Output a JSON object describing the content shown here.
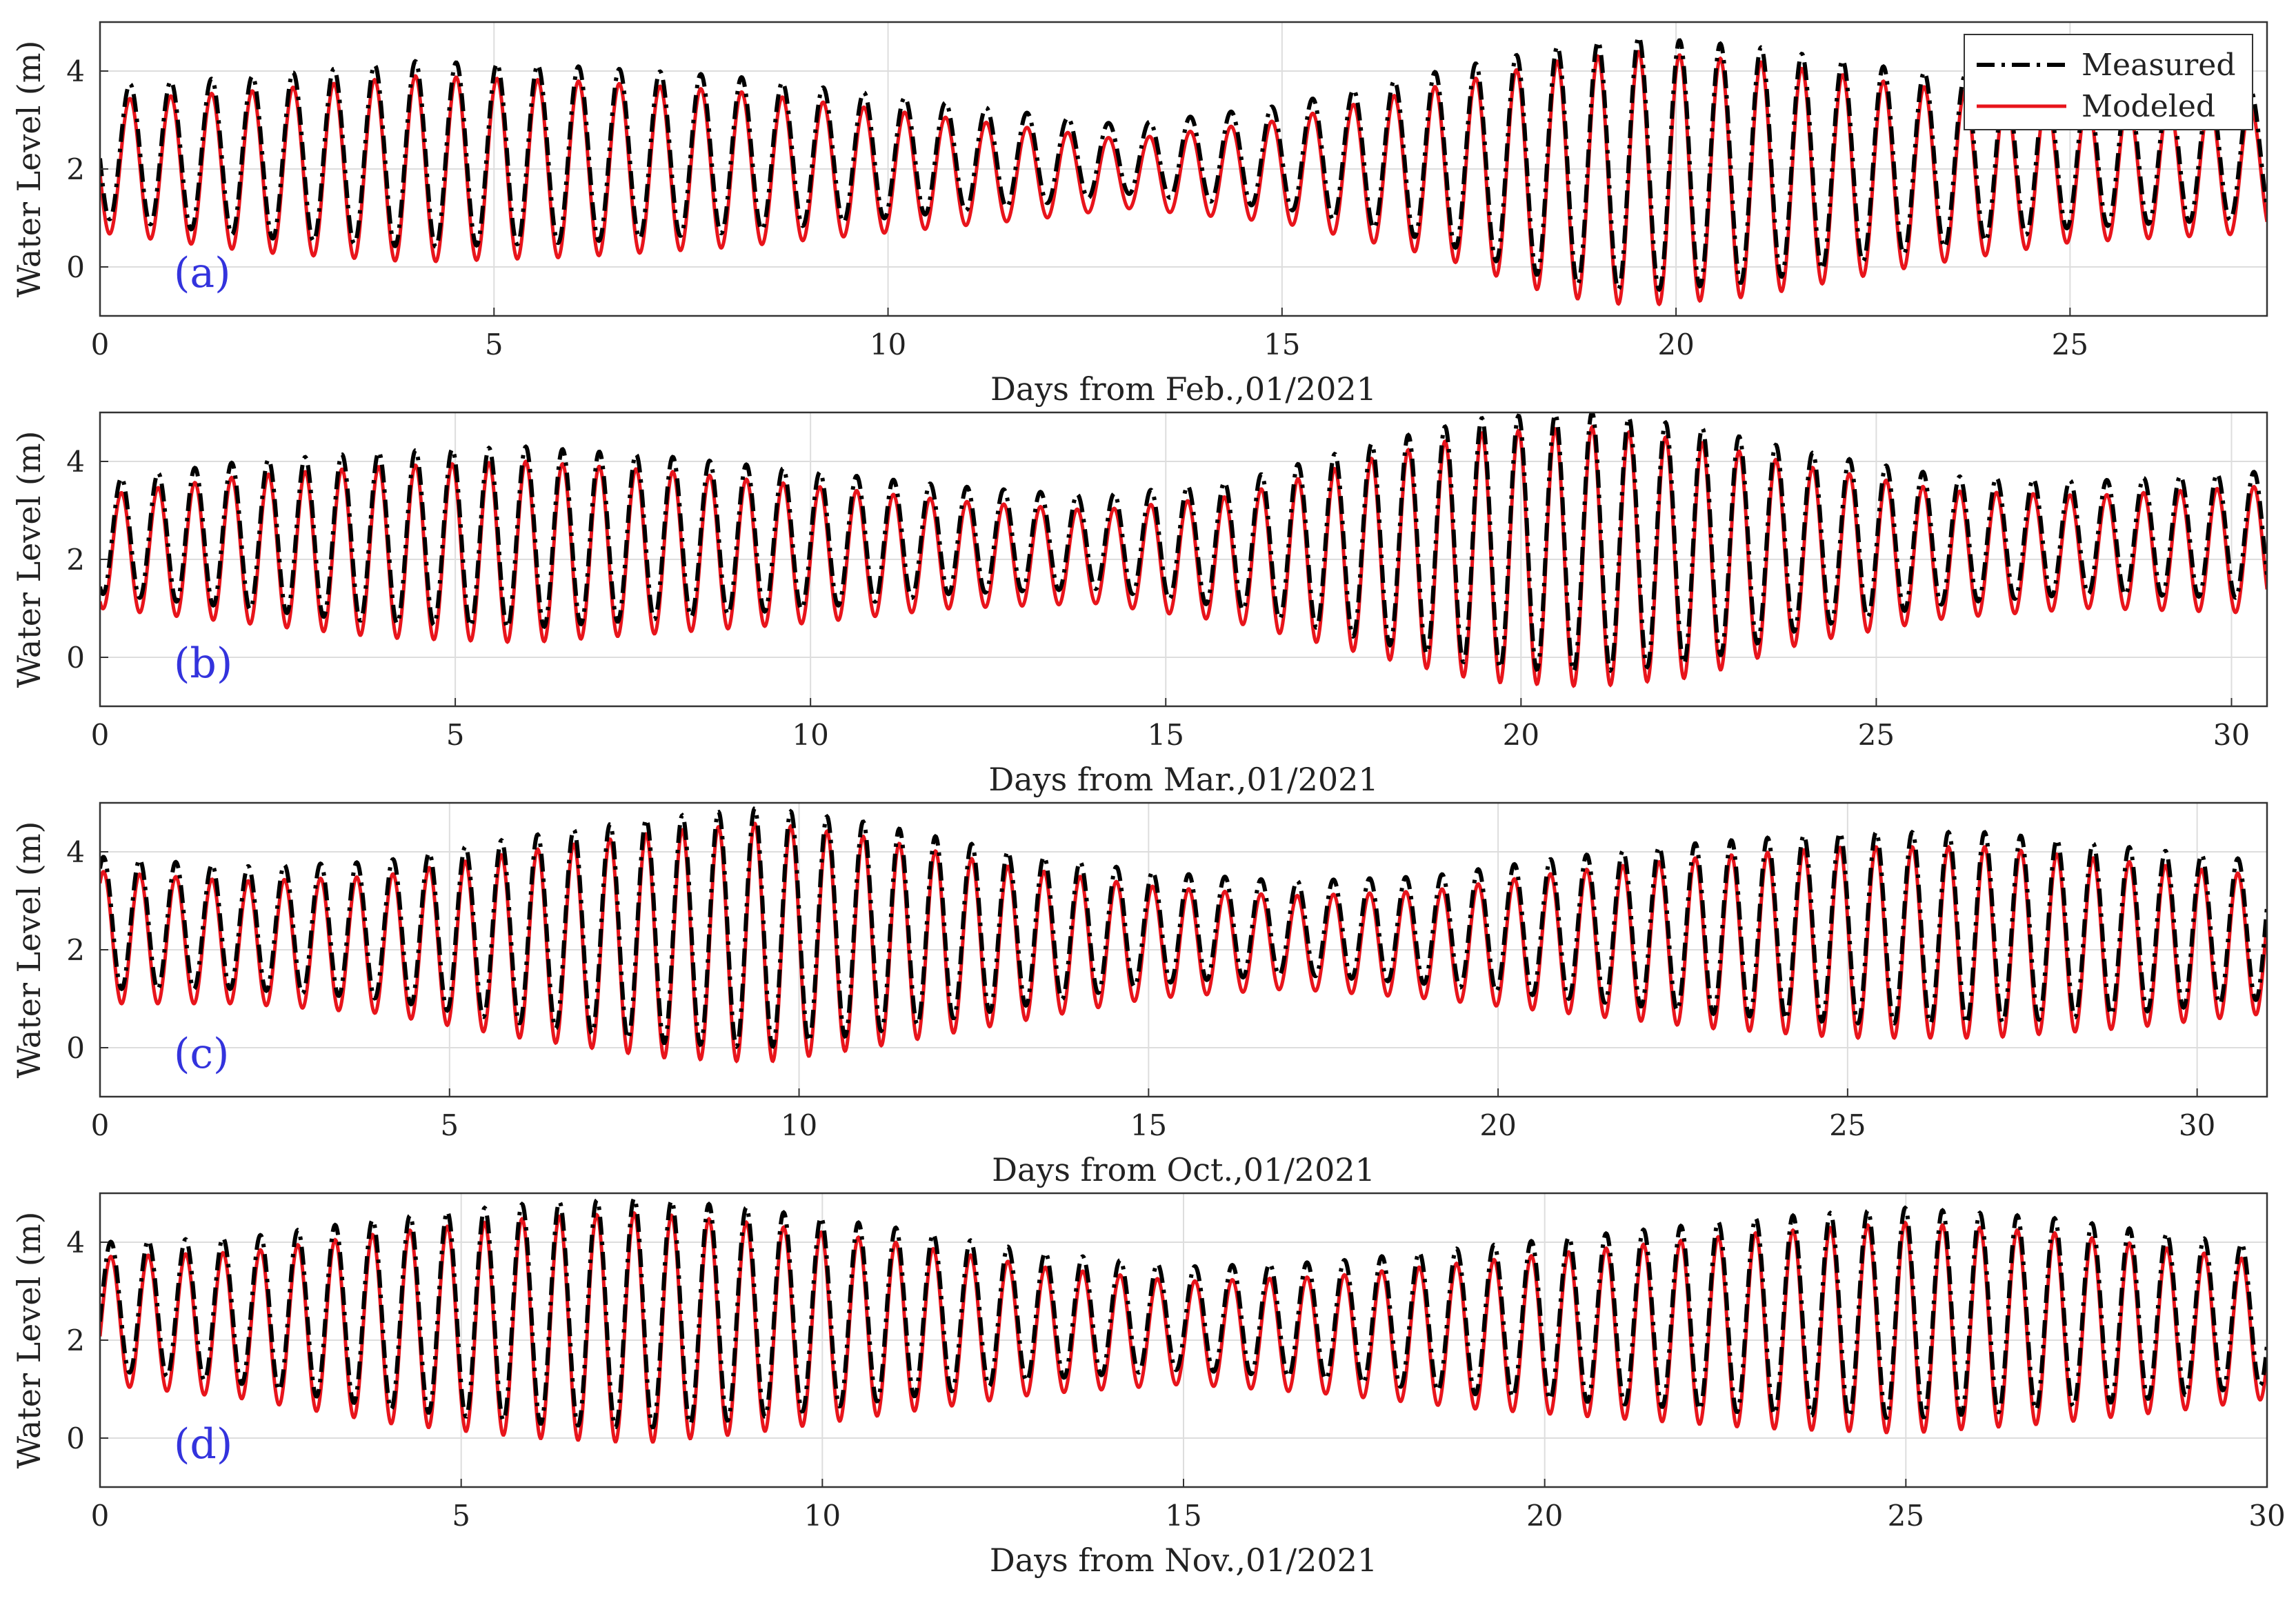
{
  "figure": {
    "background": "#ffffff"
  },
  "colors": {
    "measured": "#000000",
    "modeled": "#e8141b",
    "panel_label": "#3333dd",
    "grid": "#dddddd",
    "axes": "#333333"
  },
  "legend": {
    "position": "top-right",
    "panel": 0,
    "entries": [
      "Measured",
      "Modeled"
    ]
  },
  "chart_data": [
    {
      "type": "line",
      "panel_label": "(a)",
      "xlabel": "Days from Feb.,01/2021",
      "ylabel": "Water Level (m)",
      "xlim": [
        0,
        27.5
      ],
      "ylim": [
        -1,
        5
      ],
      "xticks": [
        0,
        5,
        10,
        15,
        20,
        25
      ],
      "yticks": [
        0,
        2,
        4
      ],
      "grid": true,
      "tidal_period_days": 0.5175,
      "first_high_day": 0.38,
      "series": [
        {
          "name": "Measured",
          "style": "dash-dot",
          "envelope": {
            "days": [
              0,
              2,
              4,
              6,
              8,
              10,
              12,
              13,
              15,
              17,
              18.5,
              19.5,
              21,
              23,
              25,
              27.5
            ],
            "high": [
              3.7,
              3.9,
              4.2,
              4.1,
              3.9,
              3.5,
              3.1,
              2.9,
              3.3,
              4.0,
              4.5,
              4.7,
              4.5,
              4.0,
              3.7,
              3.6
            ],
            "low": [
              1.0,
              0.6,
              0.4,
              0.5,
              0.7,
              1.0,
              1.3,
              1.5,
              1.2,
              0.5,
              -0.3,
              -0.5,
              -0.3,
              0.3,
              0.8,
              1.0
            ]
          }
        },
        {
          "name": "Modeled",
          "style": "solid",
          "envelope": {
            "days": [
              0,
              2,
              4,
              6,
              8,
              10,
              12,
              13,
              15,
              17,
              18.5,
              19.5,
              21,
              23,
              25,
              27.5
            ],
            "high": [
              3.4,
              3.6,
              3.9,
              3.8,
              3.6,
              3.2,
              2.8,
              2.6,
              3.0,
              3.7,
              4.2,
              4.4,
              4.2,
              3.7,
              3.4,
              3.3
            ],
            "low": [
              0.7,
              0.3,
              0.1,
              0.2,
              0.4,
              0.7,
              1.0,
              1.2,
              0.9,
              0.2,
              -0.6,
              -0.8,
              -0.6,
              0.0,
              0.5,
              0.7
            ]
          }
        }
      ]
    },
    {
      "type": "line",
      "panel_label": "(b)",
      "xlabel": "Days from Mar.,01/2021",
      "ylabel": "Water Level (m)",
      "xlim": [
        0,
        30.5
      ],
      "ylim": [
        -1,
        5
      ],
      "xticks": [
        0,
        5,
        10,
        15,
        20,
        25,
        30
      ],
      "yticks": [
        0,
        2,
        4
      ],
      "grid": true,
      "tidal_period_days": 0.5175,
      "first_high_day": 0.3,
      "series": [
        {
          "name": "Measured",
          "style": "dash-dot",
          "envelope": {
            "days": [
              0,
              2,
              4,
              6,
              8,
              10,
              12,
              14,
              16,
              18,
              19.5,
              21,
              22.5,
              24,
              26,
              28,
              30.5
            ],
            "high": [
              3.6,
              4.0,
              4.2,
              4.3,
              4.1,
              3.8,
              3.5,
              3.3,
              3.6,
              4.4,
              4.9,
              5.0,
              4.7,
              4.2,
              3.7,
              3.6,
              3.8
            ],
            "low": [
              1.3,
              1.0,
              0.7,
              0.6,
              0.8,
              1.0,
              1.3,
              1.4,
              1.0,
              0.3,
              -0.2,
              -0.3,
              -0.1,
              0.6,
              1.1,
              1.3,
              1.2
            ]
          }
        },
        {
          "name": "Modeled",
          "style": "solid",
          "envelope": {
            "days": [
              0,
              2,
              4,
              6,
              8,
              10,
              12,
              14,
              16,
              18,
              19.5,
              21,
              22.5,
              24,
              26,
              28,
              30.5
            ],
            "high": [
              3.3,
              3.7,
              3.9,
              4.0,
              3.8,
              3.5,
              3.2,
              3.0,
              3.3,
              4.1,
              4.6,
              4.7,
              4.4,
              3.9,
              3.4,
              3.3,
              3.5
            ],
            "low": [
              1.0,
              0.7,
              0.4,
              0.3,
              0.5,
              0.7,
              1.0,
              1.1,
              0.7,
              0.0,
              -0.5,
              -0.6,
              -0.4,
              0.3,
              0.8,
              1.0,
              0.9
            ]
          }
        }
      ]
    },
    {
      "type": "line",
      "panel_label": "(c)",
      "xlabel": "Days from Oct.,01/2021",
      "ylabel": "Water Level (m)",
      "xlim": [
        0,
        31
      ],
      "ylim": [
        -1,
        5
      ],
      "xticks": [
        0,
        5,
        10,
        15,
        20,
        25,
        30
      ],
      "yticks": [
        0,
        2,
        4
      ],
      "grid": true,
      "tidal_period_days": 0.5175,
      "first_high_day": 0.05,
      "series": [
        {
          "name": "Measured",
          "style": "dash-dot",
          "envelope": {
            "days": [
              0,
              2,
              4,
              6,
              8,
              9.5,
              11,
              13,
              15,
              17,
              19,
              21,
              23,
              25,
              27,
              29,
              31
            ],
            "high": [
              3.9,
              3.7,
              3.8,
              4.3,
              4.7,
              4.9,
              4.6,
              4.0,
              3.6,
              3.4,
              3.5,
              3.9,
              4.2,
              4.4,
              4.4,
              4.1,
              3.8
            ],
            "low": [
              1.2,
              1.2,
              1.0,
              0.5,
              0.1,
              0.0,
              0.3,
              0.8,
              1.3,
              1.5,
              1.3,
              1.0,
              0.7,
              0.5,
              0.5,
              0.7,
              1.0
            ]
          }
        },
        {
          "name": "Modeled",
          "style": "solid",
          "envelope": {
            "days": [
              0,
              2,
              4,
              6,
              8,
              9.5,
              11,
              13,
              15,
              17,
              19,
              21,
              23,
              25,
              27,
              29,
              31
            ],
            "high": [
              3.6,
              3.4,
              3.5,
              4.0,
              4.4,
              4.6,
              4.3,
              3.7,
              3.3,
              3.1,
              3.2,
              3.6,
              3.9,
              4.1,
              4.1,
              3.8,
              3.5
            ],
            "low": [
              0.9,
              0.9,
              0.7,
              0.2,
              -0.2,
              -0.3,
              0.0,
              0.5,
              1.0,
              1.2,
              1.0,
              0.7,
              0.4,
              0.2,
              0.2,
              0.4,
              0.7
            ]
          }
        }
      ]
    },
    {
      "type": "line",
      "panel_label": "(d)",
      "xlabel": "Days from Nov.,01/2021",
      "ylabel": "Water Level (m)",
      "xlim": [
        0,
        30
      ],
      "ylim": [
        -1,
        5
      ],
      "xticks": [
        0,
        5,
        10,
        15,
        20,
        25,
        30
      ],
      "yticks": [
        0,
        2,
        4
      ],
      "grid": true,
      "tidal_period_days": 0.5175,
      "first_high_day": 0.15,
      "series": [
        {
          "name": "Measured",
          "style": "dash-dot",
          "envelope": {
            "days": [
              0,
              2,
              4,
              6,
              7.5,
              9,
              11,
              13,
              15,
              17,
              19,
              21,
              23,
              25,
              27,
              29,
              30
            ],
            "high": [
              4.0,
              4.1,
              4.5,
              4.8,
              4.9,
              4.7,
              4.3,
              3.8,
              3.5,
              3.6,
              3.9,
              4.2,
              4.5,
              4.7,
              4.5,
              4.1,
              3.9
            ],
            "low": [
              1.4,
              1.1,
              0.6,
              0.3,
              0.2,
              0.4,
              0.8,
              1.2,
              1.4,
              1.2,
              0.9,
              0.7,
              0.5,
              0.4,
              0.6,
              0.9,
              1.1
            ]
          }
        },
        {
          "name": "Modeled",
          "style": "solid",
          "envelope": {
            "days": [
              0,
              2,
              4,
              6,
              7.5,
              9,
              11,
              13,
              15,
              17,
              19,
              21,
              23,
              25,
              27,
              29,
              30
            ],
            "high": [
              3.7,
              3.8,
              4.2,
              4.5,
              4.6,
              4.4,
              4.0,
              3.5,
              3.2,
              3.3,
              3.6,
              3.9,
              4.2,
              4.4,
              4.2,
              3.8,
              3.6
            ],
            "low": [
              1.1,
              0.8,
              0.3,
              0.0,
              -0.1,
              0.1,
              0.5,
              0.9,
              1.1,
              0.9,
              0.6,
              0.4,
              0.2,
              0.1,
              0.3,
              0.6,
              0.8
            ]
          }
        }
      ]
    }
  ]
}
